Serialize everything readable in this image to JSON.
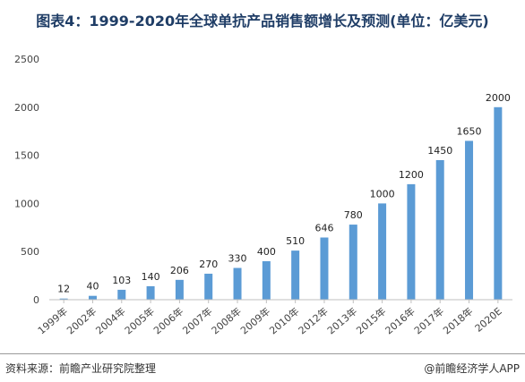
{
  "title": "图表4：1999-2020年全球单抗产品销售额增长及预测(单位：亿美元)",
  "footer": {
    "source": "资料来源：前瞻产业研究院整理",
    "brand": "@前瞻经济学人APP"
  },
  "colors": {
    "bar": "#5b9bd5",
    "axis": "#bfbfbf",
    "title": "#1f3d66"
  },
  "chart_data": {
    "type": "bar",
    "title": "图表4：1999-2020年全球单抗产品销售额增长及预测(单位：亿美元)",
    "xlabel": "",
    "ylabel": "",
    "categories": [
      "1999年",
      "2002年",
      "2004年",
      "2005年",
      "2006年",
      "2007年",
      "2008年",
      "2009年",
      "2010年",
      "2012年",
      "2013年",
      "2015年",
      "2016年",
      "2017年",
      "2018年",
      "2020E"
    ],
    "values": [
      12,
      40,
      103,
      140,
      206,
      270,
      330,
      400,
      510,
      646,
      780,
      1000,
      1200,
      1450,
      1650,
      2000
    ],
    "ylim": [
      0,
      2500
    ],
    "yticks": [
      0,
      500,
      1000,
      1500,
      2000,
      2500
    ],
    "grid": false,
    "legend": "none",
    "data_labels": true
  }
}
